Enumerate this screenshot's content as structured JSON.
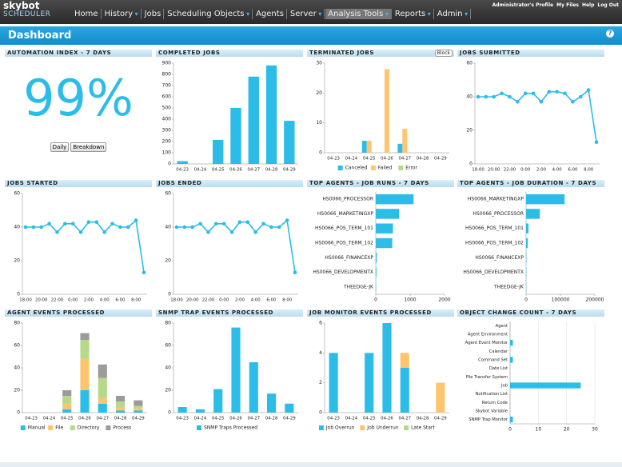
{
  "nav": {
    "logo_top": "skybot",
    "logo_bottom": "SCHEDULER",
    "items": [
      "Home",
      "History",
      "Jobs",
      "Scheduling Objects",
      "Agents",
      "Server",
      "Analysis Tools",
      "Reports",
      "Admin"
    ],
    "links": [
      "Administrator's Profile",
      "My Files",
      "Help",
      "Log Out"
    ]
  },
  "header": {
    "title": "Dashboard",
    "help": "?"
  },
  "automation": {
    "title": "AUTOMATION INDEX - 7 DAYS",
    "value": "99%",
    "buttons": [
      "Daily",
      "Breakdown"
    ]
  },
  "chart_data": [
    {
      "type": "bar",
      "title": "COMPLETED JOBS",
      "categories": [
        "04-23",
        "04-24",
        "04-25",
        "04-26",
        "04-27",
        "04-28",
        "04-29"
      ],
      "values": [
        25,
        0,
        215,
        500,
        780,
        880,
        385
      ],
      "color": "#2bbde8",
      "ylim": [
        0,
        900
      ],
      "yticks": [
        0,
        100,
        200,
        300,
        400,
        500,
        600,
        700,
        800,
        900
      ],
      "grid": false
    },
    {
      "type": "bar",
      "title": "TERMINATED JOBS",
      "tab_label": "Block",
      "stacked": false,
      "categories": [
        "04-23",
        "04-24",
        "04-25",
        "04-26",
        "04-27",
        "04-28",
        "04-29"
      ],
      "series": [
        {
          "name": "Canceled",
          "color": "#2bbde8",
          "values": [
            0,
            0,
            4,
            0,
            3,
            0,
            0
          ]
        },
        {
          "name": "Failed",
          "color": "#fcc56e",
          "values": [
            0,
            0,
            4,
            28,
            8,
            0,
            0
          ]
        },
        {
          "name": "Error",
          "color": "#b6d88a",
          "values": [
            0,
            0,
            0,
            0,
            0,
            0,
            0
          ]
        }
      ],
      "ylim": [
        0,
        30
      ],
      "yticks": [
        0,
        10,
        20,
        30
      ],
      "grid": false
    },
    {
      "type": "line",
      "title": "JOBS SUBMITTED",
      "color": "#2bbde8",
      "categories": [
        "18:00",
        null,
        "20:00",
        null,
        "22:00",
        null,
        "0:00",
        null,
        "2:00",
        null,
        "4:00",
        null,
        "6:00",
        null,
        "8:00",
        null
      ],
      "values": [
        40,
        40,
        40,
        42,
        40,
        37,
        42,
        42,
        37,
        43,
        43,
        42,
        37,
        40,
        44,
        13
      ],
      "ylim": [
        0,
        60
      ],
      "yticks": [
        0,
        20,
        40,
        60
      ],
      "grid": false
    },
    {
      "type": "line",
      "title": "JOBS STARTED",
      "color": "#2bbde8",
      "categories": [
        "18:00",
        null,
        "20:00",
        null,
        "22:00",
        null,
        "0:00",
        null,
        "2:00",
        null,
        "4:00",
        null,
        "6:00",
        null,
        "8:00",
        null
      ],
      "values": [
        40,
        40,
        40,
        42,
        37,
        42,
        42,
        37,
        43,
        43,
        37,
        42,
        40,
        40,
        44,
        13
      ],
      "ylim": [
        0,
        60
      ],
      "yticks": [
        0,
        20,
        40,
        60
      ],
      "grid": false
    },
    {
      "type": "line",
      "title": "JOBS ENDED",
      "color": "#2bbde8",
      "categories": [
        "18:00",
        null,
        "20:00",
        null,
        "22:00",
        null,
        "0:00",
        null,
        "2:00",
        null,
        "4:00",
        null,
        "6:00",
        null,
        "8:00",
        null
      ],
      "values": [
        40,
        40,
        40,
        42,
        37,
        42,
        42,
        37,
        43,
        43,
        37,
        42,
        40,
        40,
        44,
        13
      ],
      "ylim": [
        0,
        60
      ],
      "yticks": [
        0,
        20,
        40,
        60
      ],
      "grid": false
    },
    {
      "type": "hbar",
      "title": "TOP AGENTS - JOB RUNS - 7 DAYS",
      "color": "#2bbde8",
      "categories": [
        "HS0066_PROCESSOR",
        "HS0066_MARKETINGXP",
        "HS0066_POS_TERM_101",
        "HS0066_POS_TERM_102",
        "HS0066_FINANCEXP",
        "HS0066_DEVELOPMENTX",
        "THEEDGE-JK"
      ],
      "values": [
        1100,
        680,
        500,
        480,
        30,
        20,
        10
      ],
      "xlim": [
        0,
        2000
      ],
      "xticks": [
        0,
        1000,
        2000
      ],
      "grid": false
    },
    {
      "type": "hbar",
      "title": "TOP AGENTS - JOB DURATION - 7 DAYS",
      "color": "#2bbde8",
      "categories": [
        "HS0066_MARKETINGXP",
        "HS0066_PROCESSOR",
        "HS0066_POS_TERM_101",
        "HS0066_POS_TERM_102",
        "HS0066_FINANCEXP",
        "HS0066_DEVELOPMENTX",
        "THEEDGE-JK"
      ],
      "values": [
        112000,
        40000,
        7000,
        5000,
        1000,
        800,
        500
      ],
      "xlim": [
        0,
        200000
      ],
      "xticks": [
        0,
        100000,
        200000
      ],
      "grid": false
    },
    {
      "type": "bar",
      "title": "AGENT EVENTS PROCESSED",
      "stacked": true,
      "categories": [
        "04-23",
        "04-24",
        "04-25",
        "04-26",
        "04-27",
        "04-28",
        "04-29"
      ],
      "series": [
        {
          "name": "Manual",
          "color": "#2bbde8",
          "values": [
            0,
            0,
            3,
            20,
            8,
            2,
            2
          ]
        },
        {
          "name": "File",
          "color": "#fcc56e",
          "values": [
            0,
            0,
            5,
            28,
            5,
            3,
            2
          ]
        },
        {
          "name": "Directory",
          "color": "#b6d88a",
          "values": [
            0,
            0,
            7,
            17,
            18,
            5,
            2
          ]
        },
        {
          "name": "Process",
          "color": "#9b9b9b",
          "values": [
            0,
            0,
            5,
            6,
            12,
            5,
            5
          ]
        }
      ],
      "ylim": [
        0,
        80
      ],
      "yticks": [
        0,
        20,
        40,
        60,
        80
      ],
      "grid": false
    },
    {
      "type": "bar",
      "title": "SNMP TRAP EVENTS PROCESSED",
      "stacked": true,
      "categories": [
        "04-23",
        "04-24",
        "04-25",
        "04-26",
        "04-27",
        "04-28",
        "04-29"
      ],
      "series": [
        {
          "name": "SNMP Traps Processed",
          "color": "#2bbde8",
          "values": [
            5,
            3,
            21,
            76,
            45,
            17,
            8
          ]
        }
      ],
      "ylim": [
        0,
        80
      ],
      "yticks": [
        0,
        20,
        40,
        60,
        80
      ],
      "grid": false
    },
    {
      "type": "bar",
      "title": "JOB MONITOR EVENTS PROCESSED",
      "stacked": true,
      "categories": [
        "04-23",
        "04-24",
        "04-25",
        "04-26",
        "04-27",
        "04-28",
        "04-29"
      ],
      "series": [
        {
          "name": "Job Overrun",
          "color": "#2bbde8",
          "values": [
            4,
            0,
            4,
            6,
            3,
            0,
            0
          ]
        },
        {
          "name": "Job Underrun",
          "color": "#fcc56e",
          "values": [
            0,
            0,
            0,
            0,
            1,
            0,
            2
          ]
        },
        {
          "name": "Late Start",
          "color": "#b6d88a",
          "values": [
            0,
            0,
            0,
            0,
            0,
            0,
            0
          ]
        }
      ],
      "ylim": [
        0,
        6
      ],
      "yticks": [
        0,
        2,
        4,
        6
      ],
      "grid": false
    },
    {
      "type": "hbar",
      "title": "OBJECT CHANGE COUNT - 7 DAYS",
      "color": "#2bbde8",
      "categories": [
        "Agent",
        "Agent Environment",
        "Agent Event Monitor",
        "Calendar",
        "Command Set",
        "Date List",
        "File Transfer System",
        "Job",
        "Notification List",
        "Return Code",
        "Skybot Variable",
        "SNMP Trap Monitor"
      ],
      "values": [
        0,
        0,
        1,
        0,
        1,
        0,
        0,
        25,
        0,
        0,
        0,
        1
      ],
      "xlim": [
        0,
        30
      ],
      "xticks": [
        0,
        10,
        20,
        30
      ],
      "grid": true
    }
  ]
}
